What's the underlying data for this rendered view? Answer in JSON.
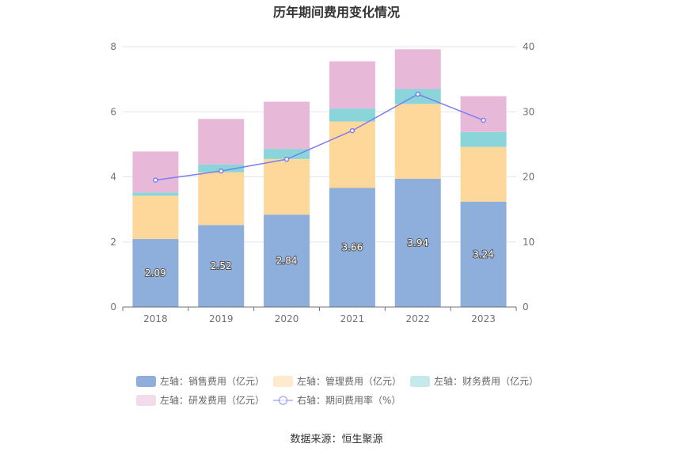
{
  "chart_data": {
    "type": "bar",
    "title": "历年期间费用变化情况",
    "categories": [
      "2018",
      "2019",
      "2020",
      "2021",
      "2022",
      "2023"
    ],
    "stacked": true,
    "left_axis": {
      "min": 0,
      "max": 8,
      "ticks": [
        "0",
        "2",
        "4",
        "6",
        "8"
      ]
    },
    "right_axis": {
      "min": 0,
      "max": 40,
      "ticks": [
        "0",
        "10",
        "20",
        "30",
        "40"
      ]
    },
    "series": [
      {
        "name": "左轴：销售费用（亿元）",
        "type": "bar",
        "axis": "left",
        "color": "#8eaedc",
        "values": [
          2.09,
          2.52,
          2.84,
          3.66,
          3.94,
          3.24
        ],
        "labels": [
          "2.09",
          "2.52",
          "2.84",
          "3.66",
          "3.94",
          "3.24"
        ]
      },
      {
        "name": "左轴：管理费用（亿元）",
        "type": "bar",
        "axis": "left",
        "color": "#fed89b",
        "values": [
          1.33,
          1.62,
          1.71,
          2.04,
          2.3,
          1.68
        ]
      },
      {
        "name": "左轴：财务费用（亿元）",
        "type": "bar",
        "axis": "left",
        "color": "#89d5d9",
        "values": [
          0.1,
          0.24,
          0.31,
          0.4,
          0.46,
          0.46
        ]
      },
      {
        "name": "左轴：研发费用（亿元）",
        "type": "bar",
        "axis": "left",
        "color": "#e8b8d9",
        "values": [
          1.26,
          1.4,
          1.45,
          1.45,
          1.22,
          1.1
        ]
      },
      {
        "name": "右轴：期间费用率（%）",
        "type": "line",
        "axis": "right",
        "color": "#7a7ef0",
        "values": [
          19.5,
          20.9,
          22.7,
          27.1,
          32.7,
          28.7
        ]
      }
    ],
    "legend_position": "bottom",
    "grid": true
  },
  "footer": {
    "source": "数据来源：恒生聚源"
  }
}
